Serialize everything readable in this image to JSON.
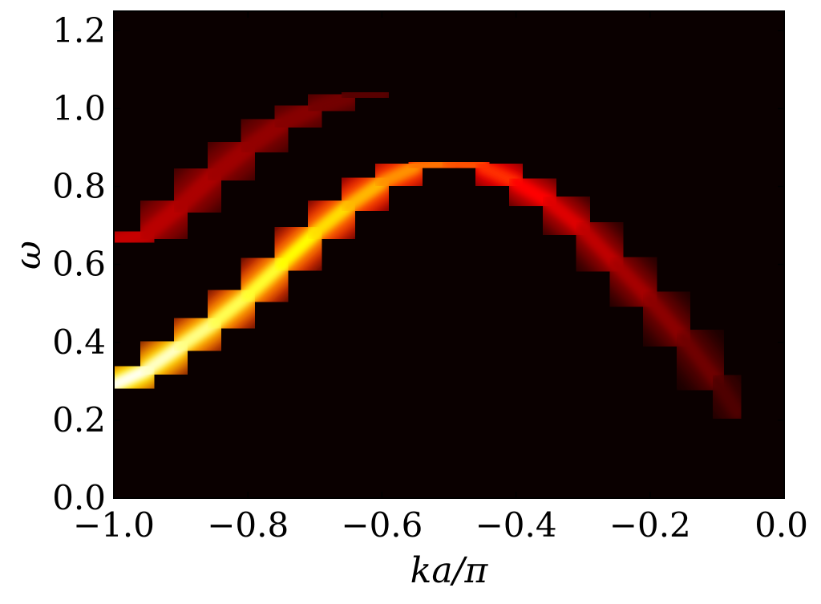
{
  "chart_data": {
    "type": "heatmap",
    "title": "",
    "xlabel": "ka/π",
    "ylabel": "ω",
    "xlim": [
      -1.0,
      0.0
    ],
    "ylim": [
      0.0,
      1.25
    ],
    "xticks": [
      -1.0,
      -0.8,
      -0.6,
      -0.4,
      -0.2,
      0.0
    ],
    "xtick_labels": [
      "−1.0",
      "−0.8",
      "−0.6",
      "−0.4",
      "−0.2",
      "0.0"
    ],
    "yticks": [
      0.0,
      0.2,
      0.4,
      0.6,
      0.8,
      1.0,
      1.2
    ],
    "ytick_labels": [
      "0.0",
      "0.2",
      "0.4",
      "0.6",
      "0.8",
      "1.0",
      "1.2"
    ],
    "colormap": "hot",
    "grid": false,
    "background_color": "#0a0000",
    "main_band": {
      "k": [
        -1.0,
        -0.95,
        -0.9,
        -0.85,
        -0.8,
        -0.75,
        -0.7,
        -0.65,
        -0.6,
        -0.55,
        -0.5,
        -0.45,
        -0.4,
        -0.35,
        -0.3,
        -0.25,
        -0.2,
        -0.15,
        -0.1,
        -0.07
      ],
      "omega": [
        0.29,
        0.33,
        0.39,
        0.45,
        0.52,
        0.6,
        0.68,
        0.75,
        0.81,
        0.85,
        0.86,
        0.85,
        0.81,
        0.76,
        0.69,
        0.6,
        0.51,
        0.41,
        0.3,
        0.22
      ],
      "intensity": [
        1.0,
        0.98,
        0.93,
        0.88,
        0.85,
        0.82,
        0.78,
        0.72,
        0.66,
        0.6,
        0.56,
        0.5,
        0.44,
        0.38,
        0.32,
        0.28,
        0.24,
        0.2,
        0.15,
        0.1
      ]
    },
    "upper_band": {
      "k": [
        -1.0,
        -0.95,
        -0.9,
        -0.85,
        -0.8,
        -0.75,
        -0.7,
        -0.65,
        -0.6,
        -0.55
      ],
      "omega": [
        0.66,
        0.68,
        0.75,
        0.83,
        0.9,
        0.96,
        1.0,
        1.03,
        1.04,
        1.04
      ],
      "intensity": [
        0.32,
        0.3,
        0.28,
        0.26,
        0.24,
        0.22,
        0.2,
        0.16,
        0.12,
        0.08
      ]
    }
  }
}
